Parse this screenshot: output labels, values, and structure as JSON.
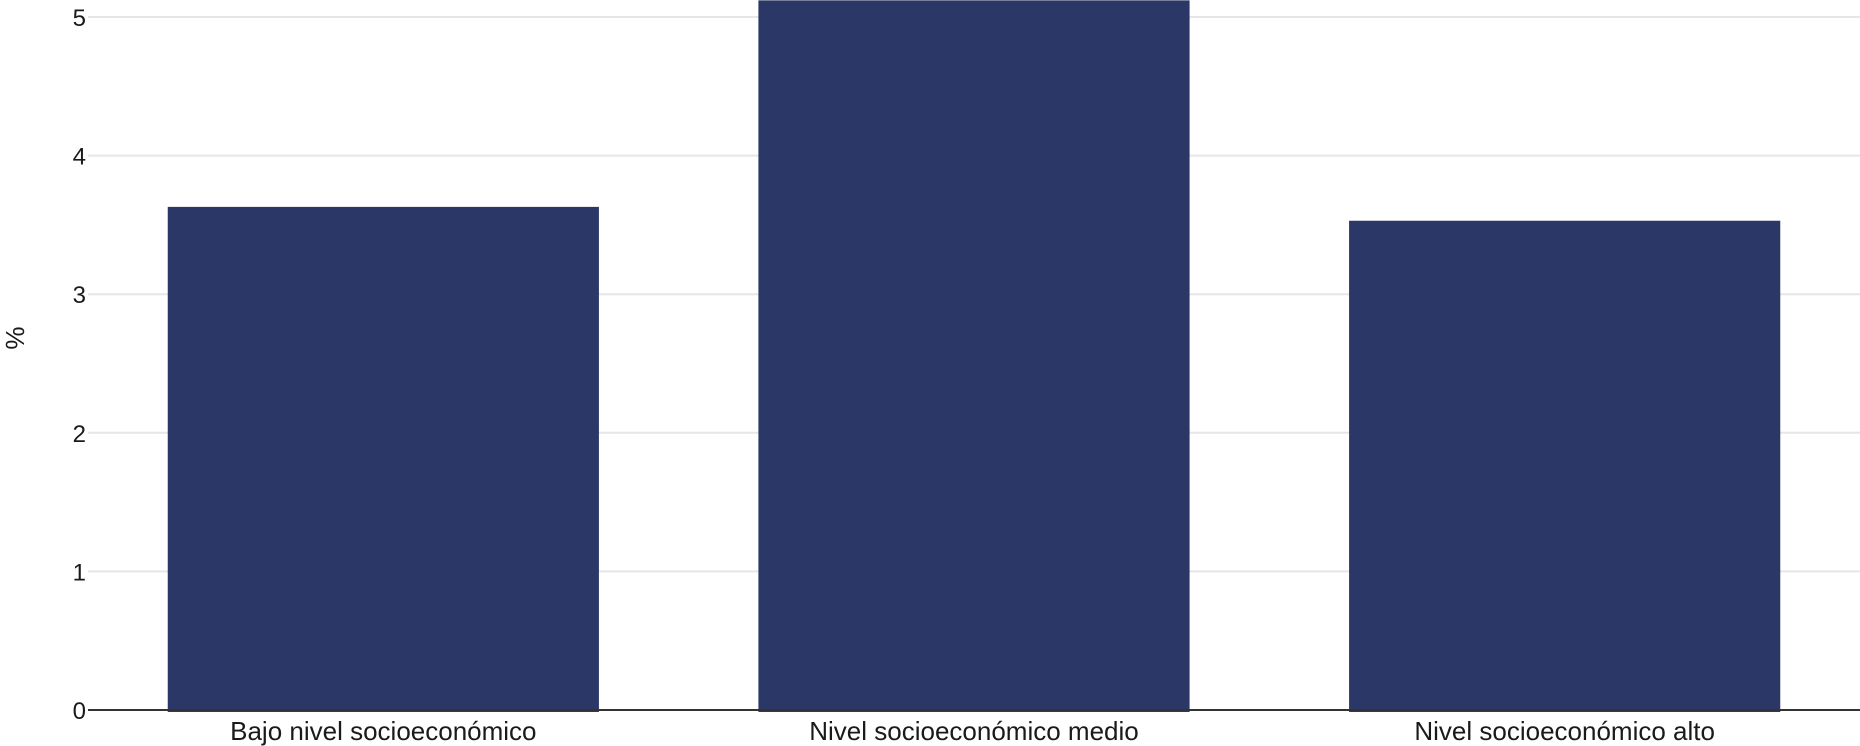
{
  "chart_data": {
    "type": "bar",
    "title": "",
    "xlabel": "",
    "ylabel": "%",
    "categories": [
      "Bajo nivel socioeconómico",
      "Nivel socioeconómico medio",
      "Nivel socioeconómico alto"
    ],
    "values": [
      3.63,
      5.12,
      3.53
    ],
    "ylim": [
      0,
      5.1
    ],
    "yticks": [
      "0",
      "1",
      "2",
      "3",
      "4",
      "5"
    ],
    "grid": true,
    "legend": "none",
    "bar_color": "#2b3766"
  }
}
